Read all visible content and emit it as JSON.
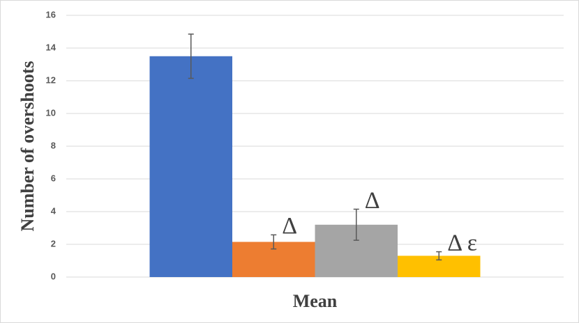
{
  "chart_data": {
    "type": "bar",
    "y_label": "Number of overshoots",
    "categories": [
      "Mean"
    ],
    "series": [
      {
        "color": "#4472c4",
        "values": [
          13.5
        ],
        "errors": [
          1.35
        ]
      },
      {
        "color": "#ed7d31",
        "values": [
          2.15
        ],
        "errors": [
          0.43
        ],
        "annotation": "Δ"
      },
      {
        "color": "#a5a5a5",
        "values": [
          3.2
        ],
        "errors": [
          0.95
        ],
        "annotation": "Δ"
      },
      {
        "color": "#ffc000",
        "values": [
          1.3
        ],
        "errors": [
          0.25
        ],
        "annotation": "Δ ε"
      }
    ],
    "ylim": [
      0,
      16
    ],
    "yticks": [
      0,
      2,
      4,
      6,
      8,
      10,
      12,
      14,
      16
    ],
    "grid": true
  }
}
